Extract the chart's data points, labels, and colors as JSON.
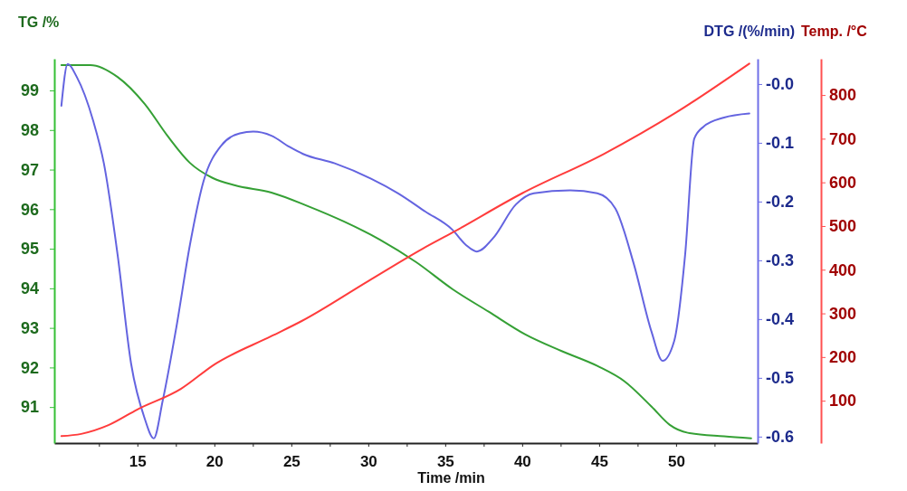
{
  "chart_data": {
    "type": "line",
    "xlabel": "Time /min",
    "ylabel": "TG /%",
    "y2label": "DTG /(%/min)",
    "y3label": "Temp. /°C",
    "xlim": [
      9.6,
      55.3
    ],
    "xticks": [
      {
        "value": 12.5,
        "label": null
      },
      15,
      {
        "value": 17.5,
        "label": null
      },
      20,
      {
        "value": 22.5,
        "label": null
      },
      25,
      {
        "value": 27.5,
        "label": null
      },
      30,
      {
        "value": 32.5,
        "label": null
      },
      35,
      {
        "value": 37.5,
        "label": null
      },
      40,
      {
        "value": 42.5,
        "label": null
      },
      45,
      {
        "value": 47.5,
        "label": null
      },
      50,
      {
        "value": 52.5,
        "label": null
      }
    ],
    "ylim": [
      90.09,
      99.8
    ],
    "yticks": [
      91,
      92,
      93,
      94,
      95,
      96,
      97,
      98,
      99
    ],
    "y2lim": [
      -0.611,
      0.043
    ],
    "y2ticks": [
      {
        "value": 0,
        "label": "-0.0"
      },
      -0.1,
      -0.2,
      -0.3,
      -0.4,
      -0.5,
      -0.6
    ],
    "y3lim": [
      3,
      883
    ],
    "y3ticks": [
      100,
      200,
      300,
      400,
      500,
      600,
      700,
      800
    ],
    "marker": "none",
    "line_style": "solid",
    "series": [
      {
        "color": "#35a035",
        "x": [
          10.06,
          11.94,
          13.71,
          15.47,
          16.94,
          18.41,
          19.88,
          21.35,
          23.71,
          26.06,
          28.41,
          30.76,
          33.12,
          35.47,
          37.82,
          40.18,
          42.53,
          44.88,
          46.65,
          48.41,
          49.59,
          50.76,
          53.12,
          54.88
        ],
        "values": [
          99.64,
          99.64,
          99.34,
          98.66,
          97.86,
          97.17,
          96.79,
          96.6,
          96.42,
          96.08,
          95.69,
          95.23,
          94.66,
          93.98,
          93.41,
          92.84,
          92.42,
          92.04,
          91.65,
          91.01,
          90.55,
          90.35,
          90.26,
          90.21
        ]
      },
      {
        "color": "#6464e0",
        "axis": "y2",
        "x": [
          10.06,
          10.47,
          11.06,
          12.12,
          12.82,
          13.71,
          14.59,
          15.47,
          16.06,
          16.65,
          17.53,
          18.41,
          19.29,
          20.47,
          21.65,
          22.53,
          23.71,
          24.88,
          25.76,
          27.82,
          30.18,
          31.94,
          33.71,
          35.47,
          36.35,
          37.06,
          38.12,
          39.59,
          40.76,
          43.12,
          44.88,
          46.06,
          47.24,
          48.41,
          49.12,
          49.88,
          50.59,
          51.18,
          51.76,
          53.12,
          54.76
        ],
        "values": [
          -0.037,
          0.034,
          0.012,
          -0.062,
          -0.135,
          -0.29,
          -0.476,
          -0.569,
          -0.603,
          -0.538,
          -0.414,
          -0.274,
          -0.166,
          -0.104,
          -0.084,
          -0.081,
          -0.088,
          -0.107,
          -0.119,
          -0.135,
          -0.161,
          -0.186,
          -0.217,
          -0.248,
          -0.274,
          -0.285,
          -0.262,
          -0.205,
          -0.186,
          -0.181,
          -0.186,
          -0.212,
          -0.305,
          -0.422,
          -0.471,
          -0.437,
          -0.29,
          -0.093,
          -0.073,
          -0.057,
          -0.05
        ]
      },
      {
        "color": "#ff3c3c",
        "axis": "y3",
        "x": [
          10.06,
          11.35,
          13.12,
          15,
          17.82,
          20,
          23.71,
          25.65,
          30,
          33.53,
          35.47,
          40,
          45.3,
          50,
          54.76
        ],
        "values": [
          19,
          24,
          44,
          80,
          127,
          183,
          248,
          282,
          374,
          448,
          485,
          575,
          665,
          760,
          872
        ]
      }
    ]
  }
}
